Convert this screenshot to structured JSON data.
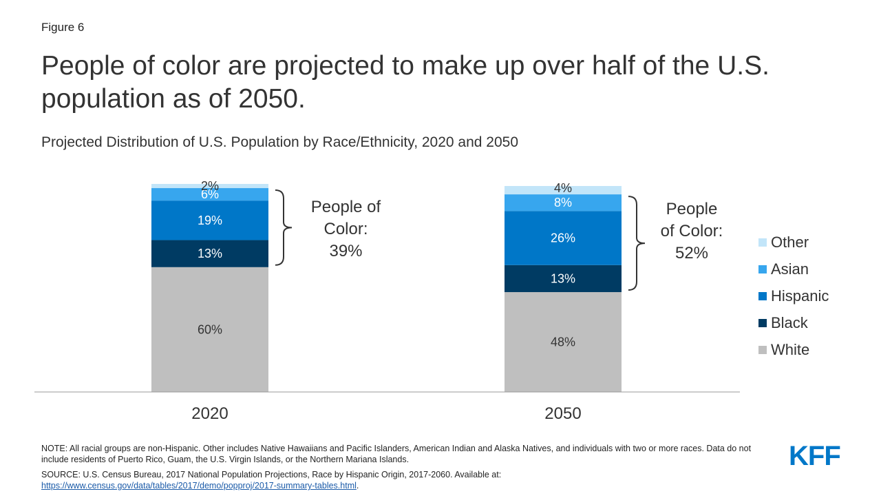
{
  "figure_label": "Figure 6",
  "title_line1": "People of color are projected to make up over half of the U.S.",
  "title_line2": "population as of 2050.",
  "colors": {
    "White": "#bfbfbf",
    "Black": "#003b63",
    "Hispanic": "#0077c8",
    "Asian": "#37a6ee",
    "Other": "#c2e5f9"
  },
  "chart_data": {
    "type": "bar",
    "stacked": true,
    "title": "Projected Distribution of U.S. Population by Race/Ethnicity, 2020 and 2050",
    "categories": [
      "2020",
      "2050"
    ],
    "series": [
      {
        "name": "White",
        "values": [
          60,
          48
        ],
        "labels": [
          "60%",
          "48%"
        ]
      },
      {
        "name": "Black",
        "values": [
          13,
          13
        ],
        "labels": [
          "13%",
          "13%"
        ]
      },
      {
        "name": "Hispanic",
        "values": [
          19,
          26
        ],
        "labels": [
          "19%",
          "26%"
        ]
      },
      {
        "name": "Asian",
        "values": [
          6,
          8
        ],
        "labels": [
          "6%",
          "8%"
        ]
      },
      {
        "name": "Other",
        "values": [
          2,
          4
        ],
        "labels": [
          "2%",
          "4%"
        ]
      }
    ],
    "ylim": [
      0,
      100
    ],
    "legend_order": [
      "Other",
      "Asian",
      "Hispanic",
      "Black",
      "White"
    ],
    "legend_position": "right",
    "annotations": [
      {
        "category": "2020",
        "lines": [
          "People of",
          "Color:",
          "39%"
        ]
      },
      {
        "category": "2050",
        "lines": [
          "People",
          "of Color:",
          "52%"
        ]
      }
    ]
  },
  "note": "NOTE: All racial groups are non-Hispanic. Other includes Native Hawaiians and Pacific Islanders, American Indian and Alaska Natives, and individuals with two or more races. Data do not include residents of Puerto Rico, Guam, the U.S. Virgin Islands, or the Northern Mariana Islands.",
  "source_text": "SOURCE: U.S. Census Bureau, 2017 National Population Projections, Race by Hispanic Origin, 2017-2060. Available at:",
  "source_url": "https://www.census.gov/data/tables/2017/demo/popproj/2017-summary-tables.html",
  "source_suffix": ".",
  "logo_text": "KFF"
}
